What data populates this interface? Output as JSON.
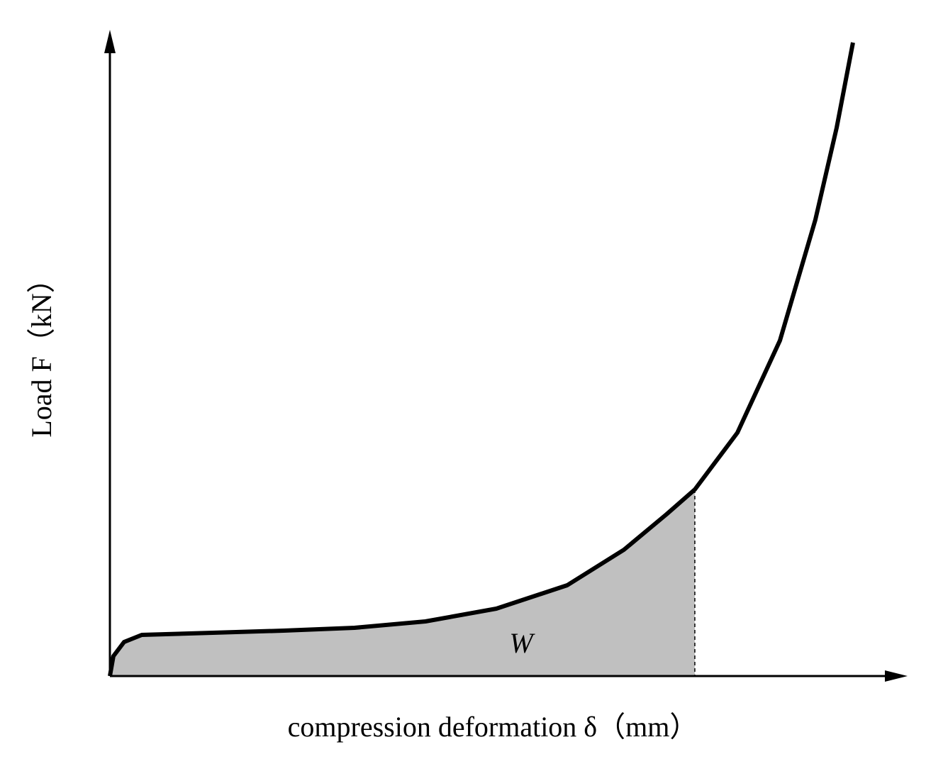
{
  "chart_data": {
    "type": "line",
    "x_label": "compression deformation δ（mm）",
    "y_label": "Load F（kN）",
    "annotation": "W",
    "x": [
      0,
      0.44,
      1.78,
      4.0,
      12.89,
      21.78,
      30.67,
      39.56,
      48.44,
      57.33,
      64.44,
      69.78,
      73.33,
      78.67,
      84.0,
      88.44,
      91.11,
      93.16
    ],
    "values": [
      0,
      3.07,
      5.27,
      6.37,
      6.7,
      7.03,
      7.46,
      8.45,
      10.43,
      14.05,
      19.54,
      25.03,
      28.87,
      37.65,
      51.92,
      70.58,
      84.85,
      98.02
    ],
    "color": "#000000",
    "area_color": "#c0c0c0",
    "area_end_x": 73.33,
    "xlim": [
      0,
      100
    ],
    "ylim": [
      0,
      100
    ]
  }
}
